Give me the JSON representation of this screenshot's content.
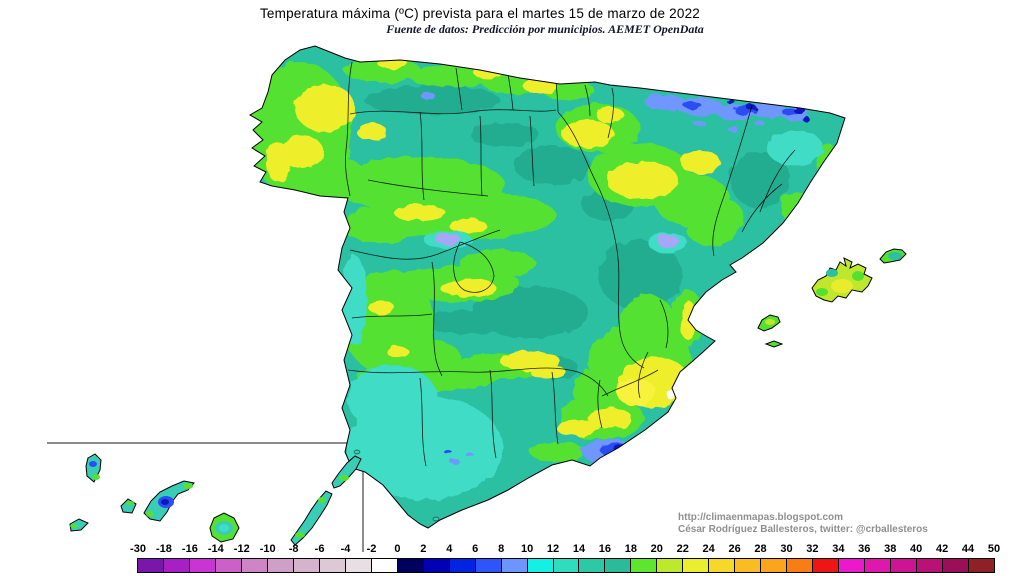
{
  "header": {
    "title": "Temperatura máxima (ºC) prevista para el martes 15 de marzo de 2022",
    "subtitle": "Fuente de datos: Predicción por municipios. AEMET OpenData"
  },
  "attribution": {
    "line1": "http://climaenmapas.blogspot.com",
    "line2": "César Rodríguez Ballesteros, twitter: @crballesteros"
  },
  "legend": {
    "tick_labels": [
      "-30",
      "-18",
      "-16",
      "-14",
      "-12",
      "-10",
      "-8",
      "-6",
      "-4",
      "-2",
      "0",
      "2",
      "4",
      "6",
      "8",
      "10",
      "12",
      "14",
      "16",
      "18",
      "20",
      "22",
      "24",
      "26",
      "28",
      "30",
      "32",
      "34",
      "36",
      "38",
      "40",
      "42",
      "44",
      "50"
    ],
    "segment_colors": [
      "#7b16ad",
      "#a81fc6",
      "#c934d2",
      "#cd60c8",
      "#ce85c6",
      "#d09fc8",
      "#d5b3cd",
      "#ddc9d6",
      "#e8dfe4",
      "#ffffff",
      "#00005f",
      "#0000b4",
      "#0024e0",
      "#2e55fa",
      "#6c95ff",
      "#13f1e4",
      "#2eddbf",
      "#2cc9a6",
      "#2abb9b",
      "#5ce62e",
      "#bce92c",
      "#ebee2e",
      "#f6d828",
      "#fbbc22",
      "#fba41c",
      "#f87d12",
      "#ee1515",
      "#ec19cc",
      "#de17ad",
      "#cd1492",
      "#b91175",
      "#9d0e58",
      "#8f2025"
    ]
  },
  "map": {
    "sea_color": "#ffffff",
    "inset_border_color": "#8c8c8c",
    "land_base_color": "#2cc0a2",
    "key_colors": {
      "dark_teal": "#22ad91",
      "green": "#54e130",
      "yellow_green": "#bfe72e",
      "yellow": "#efee2b",
      "cyan": "#40dcc6",
      "light_blue": "#6f97ff",
      "blue": "#2b4ef2",
      "navy": "#0b18c0",
      "lavender": "#a8a6f6"
    }
  }
}
